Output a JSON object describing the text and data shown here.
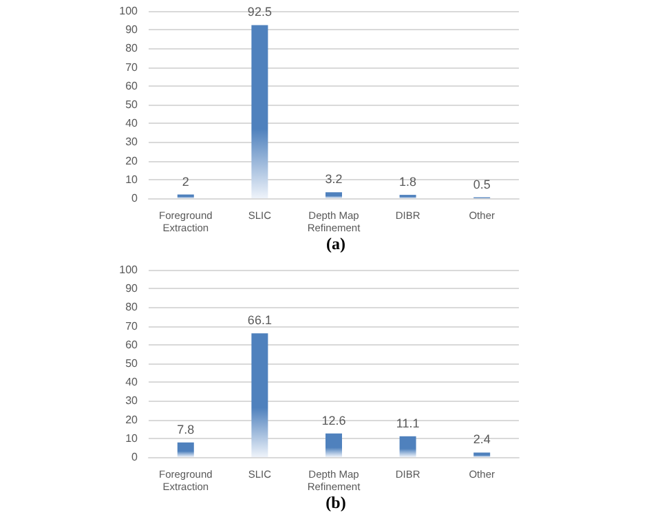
{
  "chart_data": [
    {
      "type": "bar",
      "title": "(a)",
      "categories": [
        "Foreground Extraction",
        "SLIC",
        "Depth Map Refinement",
        "DIBR",
        "Other"
      ],
      "values": [
        2,
        92.5,
        3.2,
        1.8,
        0.5
      ],
      "color": "#4f81bd",
      "ylim": [
        0,
        100
      ],
      "yticks": [
        0,
        10,
        20,
        30,
        40,
        50,
        60,
        70,
        80,
        90,
        100
      ],
      "grid": "y",
      "data_labels": true
    },
    {
      "type": "bar",
      "title": "(b)",
      "categories": [
        "Foreground Extraction",
        "SLIC",
        "Depth Map Refinement",
        "DIBR",
        "Other"
      ],
      "values": [
        7.8,
        66.1,
        12.6,
        11.1,
        2.4
      ],
      "color": "#4f81bd",
      "ylim": [
        0,
        100
      ],
      "yticks": [
        0,
        10,
        20,
        30,
        40,
        50,
        60,
        70,
        80,
        90,
        100
      ],
      "grid": "y",
      "data_labels": true
    }
  ]
}
